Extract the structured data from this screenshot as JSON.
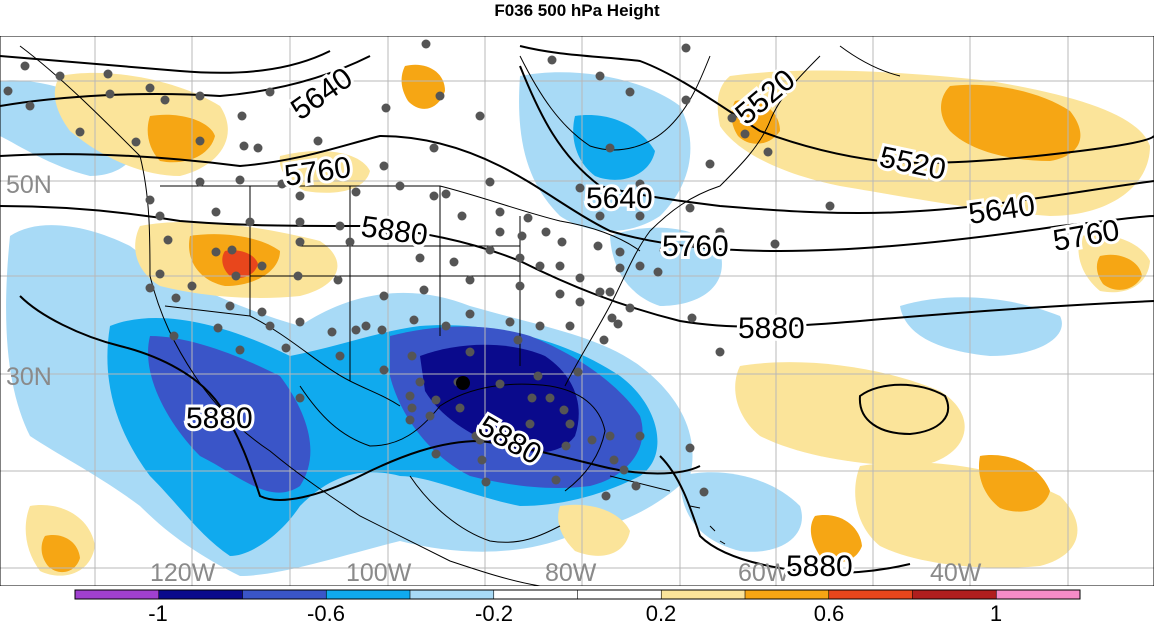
{
  "title": "F036 500 hPa Height",
  "map": {
    "latitude_labels": [
      "50N",
      "30N"
    ],
    "longitude_labels": [
      "120W",
      "100W",
      "80W",
      "60W",
      "40W"
    ],
    "contour_labels": [
      "5640",
      "5760",
      "5880",
      "5520",
      "5520",
      "5640",
      "5760",
      "5640",
      "5760",
      "5880",
      "5880",
      "5880",
      "5880"
    ]
  },
  "colorbar": {
    "tick_labels": [
      "-1",
      "-0.6",
      "-0.2",
      "0.2",
      "0.6",
      "1"
    ],
    "colors": [
      "#a040d0",
      "#0a0a8c",
      "#3a55c8",
      "#10aaee",
      "#a8daf6",
      "#ffffff",
      "#ffffff",
      "#fbe49a",
      "#f6a614",
      "#e8461c",
      "#b01e1e",
      "#f58cc8"
    ]
  }
}
